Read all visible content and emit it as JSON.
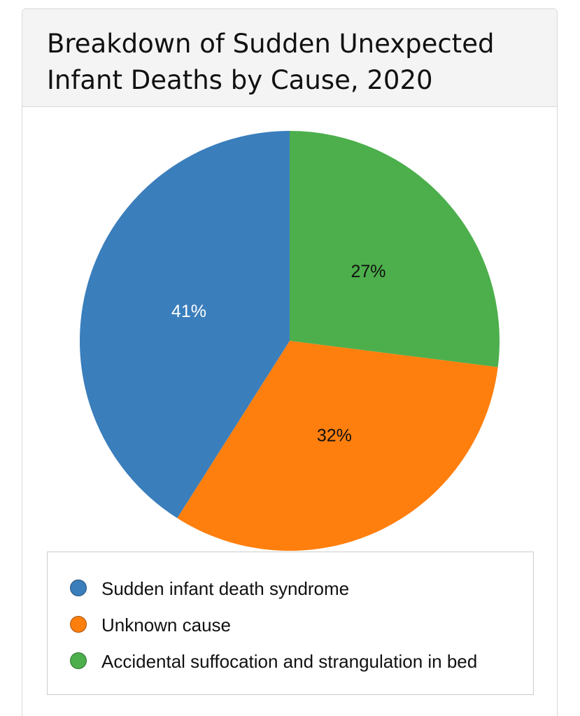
{
  "card": {
    "title": "Breakdown of Sudden Unexpected Infant Deaths by Cause, 2020"
  },
  "chart_data": {
    "type": "pie",
    "title": "Breakdown of Sudden Unexpected Infant Deaths by Cause, 2020",
    "categories": [
      "Sudden infant death syndrome",
      "Unknown cause",
      "Accidental suffocation and strangulation in bed"
    ],
    "values": [
      41,
      32,
      27
    ],
    "labels": [
      "41%",
      "32%",
      "27%"
    ],
    "colors": [
      "#3a7ebc",
      "#ff7f0e",
      "#4caf4c"
    ],
    "label_colors": [
      "#ffffff",
      "#111111",
      "#111111"
    ],
    "legend_placement": "bottom"
  }
}
